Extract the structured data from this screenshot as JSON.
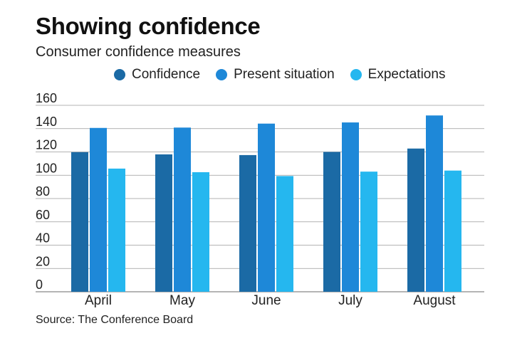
{
  "title": "Showing confidence",
  "subtitle": "Consumer confidence measures",
  "source": "Source: The Conference Board",
  "chart_data": {
    "type": "bar",
    "categories": [
      "April",
      "May",
      "June",
      "July",
      "August"
    ],
    "series": [
      {
        "name": "Confidence",
        "color": "#1b6aa5",
        "values": [
          119.8,
          117.9,
          117.3,
          120.0,
          122.9
        ]
      },
      {
        "name": "Present situation",
        "color": "#1e88d8",
        "values": [
          140.6,
          140.9,
          144.3,
          145.3,
          151.3
        ]
      },
      {
        "name": "Expectations",
        "color": "#25b7ef",
        "values": [
          105.7,
          102.6,
          99.3,
          103.1,
          104.0
        ]
      }
    ],
    "y_ticks": [
      "0",
      "20",
      "40",
      "60",
      "80",
      "100",
      "120",
      "140",
      "160"
    ],
    "ylim": [
      0,
      160
    ],
    "grid": true,
    "legend_position": "top"
  }
}
